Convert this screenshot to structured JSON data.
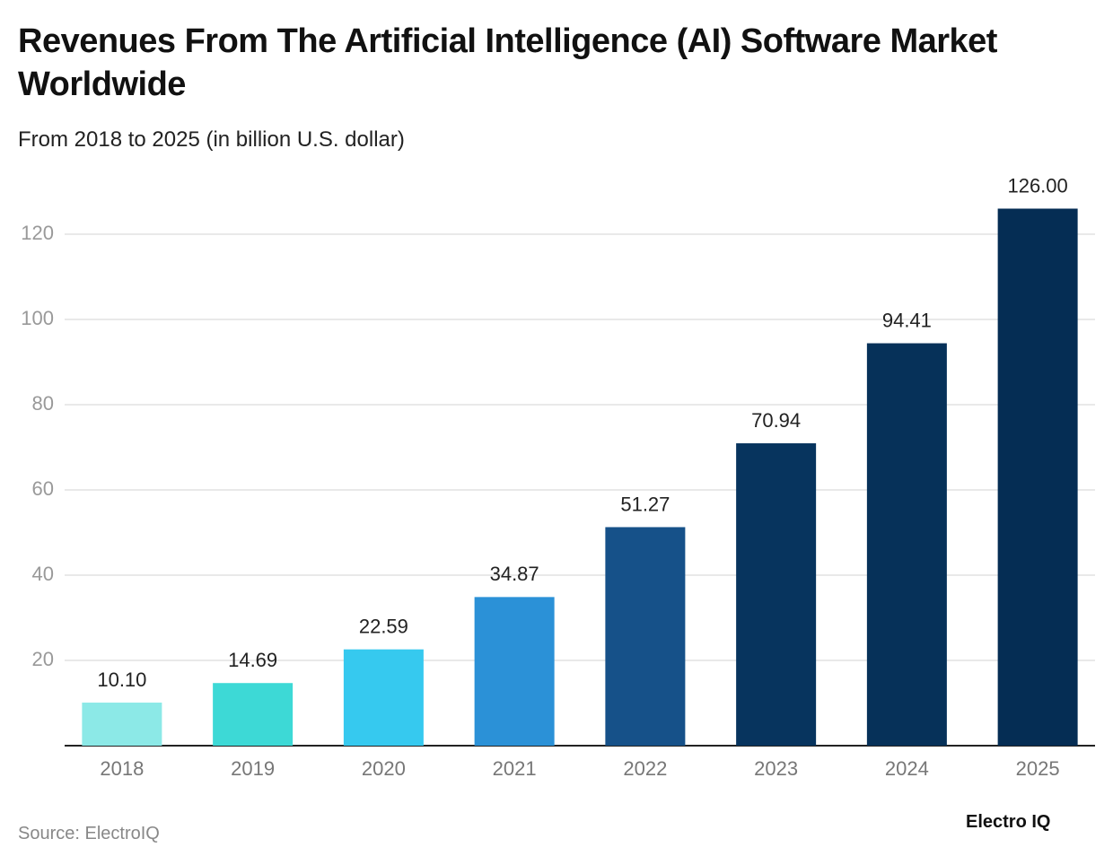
{
  "chart_data": {
    "type": "bar",
    "title": "Revenues From The Artificial Intelligence (AI) Software Market Worldwide",
    "subtitle": "From 2018 to 2025 (in billion U.S. dollar)",
    "categories": [
      "2018",
      "2019",
      "2020",
      "2021",
      "2022",
      "2023",
      "2024",
      "2025"
    ],
    "values": [
      10.1,
      14.69,
      22.59,
      34.87,
      51.27,
      70.94,
      94.41,
      126
    ],
    "value_labels": [
      "10.10",
      "14.69",
      "22.59",
      "34.87",
      "51.27",
      "70.94",
      "94.41",
      "126.00"
    ],
    "colors": [
      "#8ce9e7",
      "#3dd9d6",
      "#36c9ef",
      "#2b91d7",
      "#165189",
      "#07345e",
      "#063159",
      "#052d54"
    ],
    "ylim": [
      0,
      130
    ],
    "yticks": [
      20,
      40,
      60,
      80,
      100,
      120
    ],
    "grid": true,
    "source": "Source: ElectroIQ",
    "brand": "Electro IQ"
  }
}
